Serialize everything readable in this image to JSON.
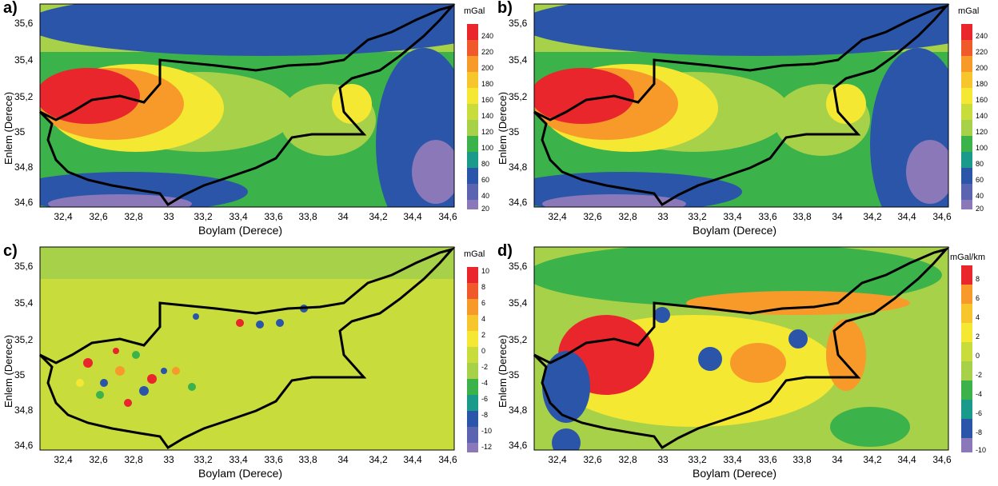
{
  "panels": [
    {
      "label": "a)",
      "unit": "mGal",
      "colorbar": [
        "240",
        "220",
        "200",
        "180",
        "160",
        "140",
        "120",
        "100",
        "80",
        "60",
        "40",
        "20"
      ]
    },
    {
      "label": "b)",
      "unit": "mGal",
      "colorbar": [
        "240",
        "220",
        "200",
        "180",
        "160",
        "140",
        "120",
        "100",
        "80",
        "60",
        "40",
        "20"
      ]
    },
    {
      "label": "c)",
      "unit": "mGal",
      "colorbar": [
        "10",
        "8",
        "6",
        "4",
        "2",
        "0",
        "-2",
        "-4",
        "-6",
        "-8",
        "-10",
        "-12"
      ]
    },
    {
      "label": "d)",
      "unit": "mGal/km",
      "colorbar": [
        "8",
        "6",
        "4",
        "2",
        "0",
        "-2",
        "-4",
        "-6",
        "-8",
        "-10"
      ]
    }
  ],
  "axes": {
    "xlabel": "Boylam (Derece)",
    "ylabel": "Enlem (Derece)",
    "xticks": [
      "32,4",
      "32,6",
      "32,8",
      "33",
      "33,2",
      "33,4",
      "33,6",
      "33,8",
      "34",
      "34,2",
      "34,4",
      "34,6"
    ],
    "yticks": [
      "35,6",
      "35,4",
      "35,2",
      "35",
      "34,8",
      "34,6"
    ]
  },
  "colors": {
    "red": "#e8262b",
    "orange": "#f79a2a",
    "yellow": "#f4e832",
    "lightgreen": "#a8d14a",
    "green": "#3bb24a",
    "teal": "#1a9a8a",
    "blue": "#2a55a8",
    "purple": "#8a78b8",
    "outline": "#000000"
  }
}
